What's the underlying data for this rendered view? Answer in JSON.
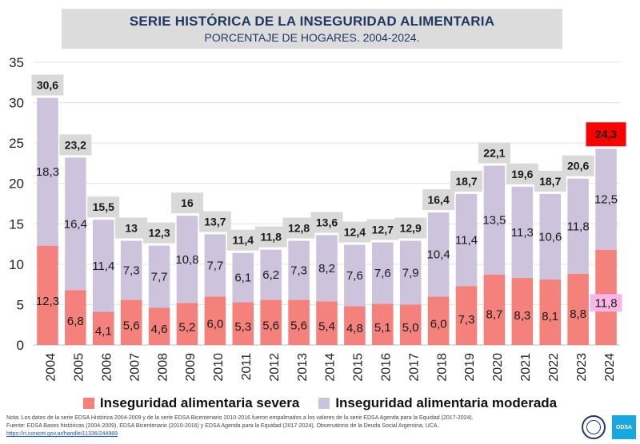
{
  "header": {
    "title": "SERIE HISTÓRICA DE LA INSEGURIDAD ALIMENTARIA",
    "subtitle": "PORCENTAJE DE HOGARES. 2004-2024."
  },
  "legend": {
    "severe": "Inseguridad alimentaria severa",
    "moderate": "Inseguridad alimentaria moderada"
  },
  "notes": {
    "nota": "Nota: Los datos de la serie EDSA Histórica 2004-2009 y de la serie EDSA Bicentenario 2010-2016 fueron empalmados a los valores de la serie EDSA Agenda para la Equidad (2017-2024).",
    "fuente": "Fuente: EDSA Bases históricas (2004-2009), EDSA Bicentenario (2010-2016) y EDSA Agenda para la Equidad (2017-2024), Observatorio de la Deuda Social Argentina, UCA.",
    "link": "https://ri.conicet.gov.ar/handle/11336/244989"
  },
  "logos": {
    "odsa": "ODSA"
  },
  "colors": {
    "severe": "#f4817b",
    "moderate": "#cdc3dd",
    "total_box": "#d9d9d9",
    "highlight_total": "#ff0000",
    "highlight_severe_label": "#f6b6e6",
    "title_text": "#1f3864"
  },
  "chart_data": {
    "type": "bar",
    "stacked": true,
    "categories": [
      "2004",
      "2005",
      "2006",
      "2007",
      "2008",
      "2009",
      "2010",
      "2011",
      "2012",
      "2013",
      "2014",
      "2015",
      "2016",
      "2017",
      "2018",
      "2019",
      "2020",
      "2021",
      "2022",
      "2023",
      "2024"
    ],
    "series": [
      {
        "name": "Inseguridad alimentaria severa",
        "values": [
          12.3,
          6.8,
          4.1,
          5.6,
          4.6,
          5.2,
          6.0,
          5.3,
          5.6,
          5.6,
          5.4,
          4.8,
          5.1,
          5.0,
          6.0,
          7.3,
          8.7,
          8.3,
          8.1,
          8.8,
          11.8
        ],
        "labels": [
          "12,3",
          "6,8",
          "4,1",
          "5,6",
          "4,6",
          "5,2",
          "6,0",
          "5,3",
          "5,6",
          "5,6",
          "5,4",
          "4,8",
          "5,1",
          "5,0",
          "6,0",
          "7,3",
          "8,7",
          "8,3",
          "8,1",
          "8,8",
          "11,8"
        ]
      },
      {
        "name": "Inseguridad alimentaria moderada",
        "values": [
          18.3,
          16.4,
          11.4,
          7.3,
          7.7,
          10.8,
          7.7,
          6.1,
          6.2,
          7.3,
          8.2,
          7.6,
          7.6,
          7.9,
          10.4,
          11.4,
          13.5,
          11.3,
          10.6,
          11.8,
          12.5
        ],
        "labels": [
          "18,3",
          "16,4",
          "11,4",
          "7,3",
          "7,7",
          "10,8",
          "7,7",
          "6,1",
          "6,2",
          "7,3",
          "8,2",
          "7,6",
          "7,6",
          "7,9",
          "10,4",
          "11,4",
          "13,5",
          "11,3",
          "10,6",
          "11,8",
          "12,5"
        ]
      }
    ],
    "totals": [
      30.6,
      23.2,
      15.5,
      13,
      12.3,
      16,
      13.7,
      11.4,
      11.8,
      12.8,
      13.6,
      12.4,
      12.7,
      12.9,
      16.4,
      18.7,
      22.1,
      19.6,
      18.7,
      20.6,
      24.3
    ],
    "total_labels": [
      "30,6",
      "23,2",
      "15,5",
      "13",
      "12,3",
      "16",
      "13,7",
      "11,4",
      "11,8",
      "12,8",
      "13,6",
      "12,4",
      "12,7",
      "12,9",
      "16,4",
      "18,7",
      "22,1",
      "19,6",
      "18,7",
      "20,6",
      "24,3"
    ],
    "ylim": [
      0,
      35
    ],
    "yticks": [
      0,
      5,
      10,
      15,
      20,
      25,
      30,
      35
    ],
    "grid": true,
    "legend_position": "bottom",
    "highlight_category": "2024"
  }
}
